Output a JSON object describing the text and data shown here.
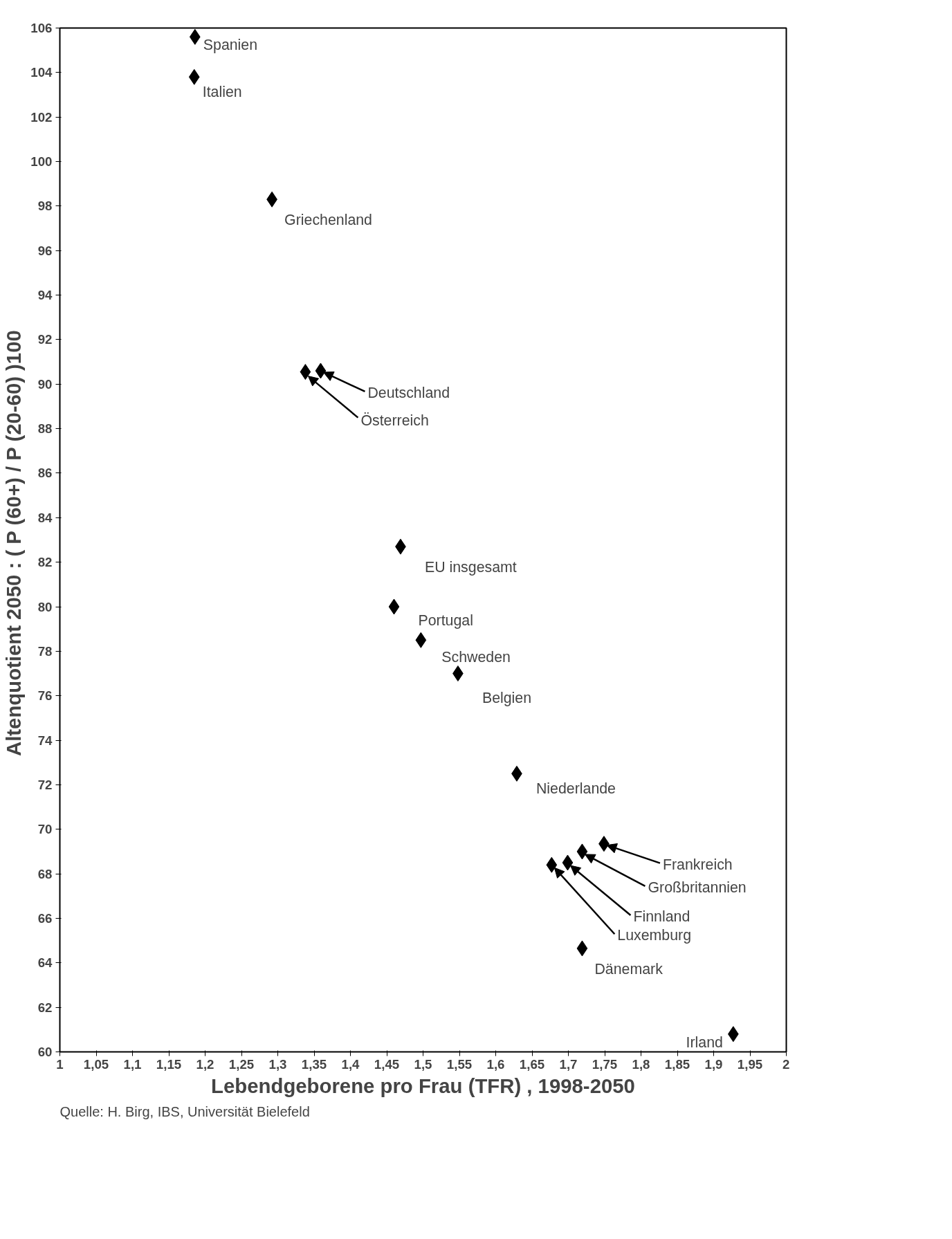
{
  "chart_data": {
    "type": "scatter",
    "xlabel": "Lebendgeborene pro Frau (TFR) , 1998-2050",
    "ylabel": "Altenquotient 2050 :  ( P (60+) / P (20-60) )100",
    "marker": "diamond",
    "grid": false,
    "series": [
      {
        "color": "#000000",
        "x": [
          1.186,
          1.185,
          1.292,
          1.359,
          1.338,
          1.469,
          1.46,
          1.497,
          1.548,
          1.629,
          1.749,
          1.719,
          1.699,
          1.677,
          1.719,
          1.927
        ],
        "values": [
          105.6,
          103.8,
          98.3,
          90.6,
          90.55,
          82.7,
          80.0,
          78.5,
          77.0,
          72.5,
          69.35,
          69.0,
          68.5,
          68.4,
          64.65,
          60.8
        ]
      }
    ],
    "xlim": [
      1,
      2
    ],
    "ylim": [
      60,
      106
    ],
    "xticks": [
      1,
      {
        "value": 1.05,
        "label": "1,05"
      },
      {
        "value": 1.1,
        "label": "1,1"
      },
      {
        "value": 1.15,
        "label": "1,15"
      },
      {
        "value": 1.2,
        "label": "1,2"
      },
      {
        "value": 1.25,
        "label": "1,25"
      },
      {
        "value": 1.3,
        "label": "1,3"
      },
      {
        "value": 1.35,
        "label": "1,35"
      },
      {
        "value": 1.4,
        "label": "1,4"
      },
      {
        "value": 1.45,
        "label": "1,45"
      },
      {
        "value": 1.5,
        "label": "1,5"
      },
      {
        "value": 1.55,
        "label": "1,55"
      },
      {
        "value": 1.6,
        "label": "1,6"
      },
      {
        "value": 1.65,
        "label": "1,65"
      },
      {
        "value": 1.7,
        "label": "1,7"
      },
      {
        "value": 1.75,
        "label": "1,75"
      },
      {
        "value": 1.8,
        "label": "1,8"
      },
      {
        "value": 1.85,
        "label": "1,85"
      },
      {
        "value": 1.9,
        "label": "1,9"
      },
      {
        "value": 1.95,
        "label": "1,95"
      },
      2
    ],
    "yticks": [
      60,
      62,
      64,
      66,
      68,
      70,
      72,
      74,
      76,
      78,
      80,
      82,
      84,
      86,
      88,
      90,
      92,
      94,
      96,
      98,
      100,
      102,
      104,
      106
    ],
    "annotations": [
      {
        "text": "Spanien",
        "x": 1.186,
        "y": 105.6
      },
      {
        "text": "Italien",
        "x": 1.185,
        "y": 103.8
      },
      {
        "text": "Griechenland",
        "x": 1.292,
        "y": 98.3
      },
      {
        "text": "Deutschland",
        "x": 1.359,
        "y": 90.6
      },
      {
        "text": "Österreich",
        "x": 1.338,
        "y": 90.55
      },
      {
        "text": "EU insgesamt",
        "x": 1.469,
        "y": 82.7
      },
      {
        "text": "Portugal",
        "x": 1.46,
        "y": 80.0
      },
      {
        "text": "Schweden",
        "x": 1.497,
        "y": 78.5
      },
      {
        "text": "Belgien",
        "x": 1.548,
        "y": 77.0
      },
      {
        "text": "Niederlande",
        "x": 1.629,
        "y": 72.5
      },
      {
        "text": "Frankreich",
        "x": 1.749,
        "y": 69.35
      },
      {
        "text": "Großbritannien",
        "x": 1.719,
        "y": 69.0
      },
      {
        "text": "Finnland",
        "x": 1.699,
        "y": 68.5
      },
      {
        "text": "Luxemburg",
        "x": 1.677,
        "y": 68.4
      },
      {
        "text": "Dänemark",
        "x": 1.719,
        "y": 64.65
      },
      {
        "text": "Irland",
        "x": 1.927,
        "y": 60.8
      },
      "Quelle: H. Birg, IBS, Universität Bielefeld"
    ]
  }
}
